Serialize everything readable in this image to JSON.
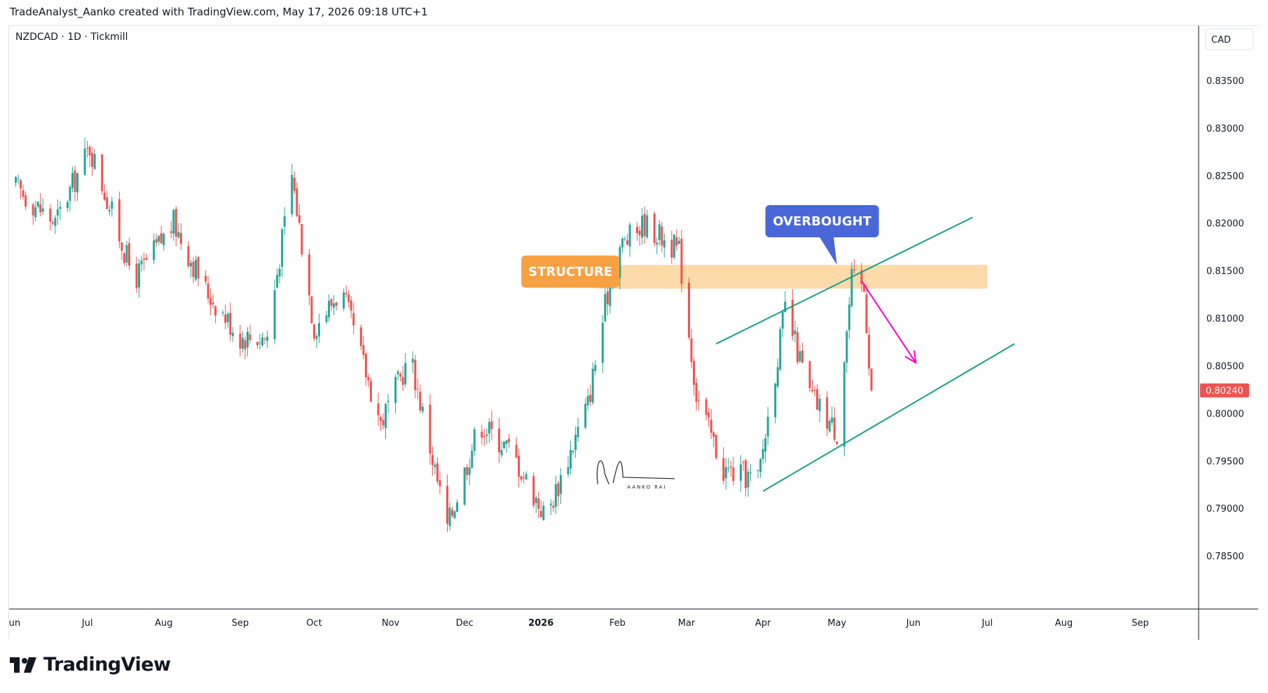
{
  "header": {
    "text": "TradeAnalyst_Aanko created with TradingView.com, May 17, 2026 09:18 UTC+1"
  },
  "symbol": {
    "text": "NZDCAD · 1D · Tickmill"
  },
  "currency": "CAD",
  "footer": {
    "brand": "TradingView"
  },
  "signature": {
    "text": "AANKO RAI"
  },
  "colors": {
    "up": "#26a69a",
    "down": "#ef5350",
    "zone": "#fbd49a",
    "structure_label": "#f7a142",
    "overbought_label": "#4a67d8",
    "channel": "#16a085",
    "arrow": "#ff00c8",
    "last_price": "#ef5350"
  },
  "chart_data": {
    "type": "candlestick",
    "price_axis": {
      "ticks": [
        "0.83500",
        "0.83000",
        "0.82500",
        "0.82000",
        "0.81500",
        "0.81000",
        "0.80500",
        "0.80000",
        "0.79500",
        "0.79000",
        "0.78500"
      ],
      "range": [
        0.78,
        0.84
      ]
    },
    "time_axis": {
      "labels": [
        "Jun",
        "Jul",
        "Aug",
        "Sep",
        "Oct",
        "Nov",
        "Dec",
        "2026",
        "Feb",
        "Mar",
        "Apr",
        "May",
        "Jun",
        "Jul",
        "Aug",
        "Sep"
      ],
      "bold": [
        "2026"
      ]
    },
    "last_price": "0.80240",
    "anchors": [
      {
        "date": "2025-06-01",
        "close": 0.824
      },
      {
        "date": "2025-06-18",
        "close": 0.82
      },
      {
        "date": "2025-07-02",
        "close": 0.828
      },
      {
        "date": "2025-07-20",
        "close": 0.814
      },
      {
        "date": "2025-08-05",
        "close": 0.82
      },
      {
        "date": "2025-08-18",
        "close": 0.813
      },
      {
        "date": "2025-09-01",
        "close": 0.808
      },
      {
        "date": "2025-09-12",
        "close": 0.808
      },
      {
        "date": "2025-09-22",
        "close": 0.825
      },
      {
        "date": "2025-10-01",
        "close": 0.809
      },
      {
        "date": "2025-10-12",
        "close": 0.813
      },
      {
        "date": "2025-10-28",
        "close": 0.799
      },
      {
        "date": "2025-11-09",
        "close": 0.806
      },
      {
        "date": "2025-11-24",
        "close": 0.788
      },
      {
        "date": "2025-12-07",
        "close": 0.799
      },
      {
        "date": "2025-12-20",
        "close": 0.796
      },
      {
        "date": "2026-01-03",
        "close": 0.789
      },
      {
        "date": "2026-01-20",
        "close": 0.801
      },
      {
        "date": "2026-01-31",
        "close": 0.817
      },
      {
        "date": "2026-02-12",
        "close": 0.82
      },
      {
        "date": "2026-02-26",
        "close": 0.817
      },
      {
        "date": "2026-03-05",
        "close": 0.802
      },
      {
        "date": "2026-03-16",
        "close": 0.794
      },
      {
        "date": "2026-03-30",
        "close": 0.793
      },
      {
        "date": "2026-04-10",
        "close": 0.811
      },
      {
        "date": "2026-04-20",
        "close": 0.802
      },
      {
        "date": "2026-05-01",
        "close": 0.798
      },
      {
        "date": "2026-05-07",
        "close": 0.814
      },
      {
        "date": "2026-05-12",
        "close": 0.813
      },
      {
        "date": "2026-05-15",
        "close": 0.8024
      }
    ],
    "annotations": {
      "structure": {
        "text": "STRUCTURE",
        "zone_price": [
          0.8131,
          0.8156
        ],
        "zone_dates": [
          "2026-01-23",
          "2026-07-01"
        ],
        "label_at": {
          "date": "2025-12-24",
          "price": 0.8149
        }
      },
      "overbought": {
        "text": "OVERBOUGHT",
        "label_at": {
          "date": "2026-04-25",
          "price": 0.8202
        },
        "pointer_to": {
          "date": "2026-05-01",
          "price": 0.8156
        }
      },
      "channel_upper": [
        {
          "date": "2026-03-13",
          "price": 0.8073
        },
        {
          "date": "2026-06-25",
          "price": 0.8206
        }
      ],
      "channel_lower": [
        {
          "date": "2026-04-01",
          "price": 0.7918
        },
        {
          "date": "2026-07-12",
          "price": 0.8073
        }
      ],
      "arrow": [
        {
          "date": "2026-05-11",
          "price": 0.8139
        },
        {
          "date": "2026-06-02",
          "price": 0.8053
        }
      ]
    }
  }
}
